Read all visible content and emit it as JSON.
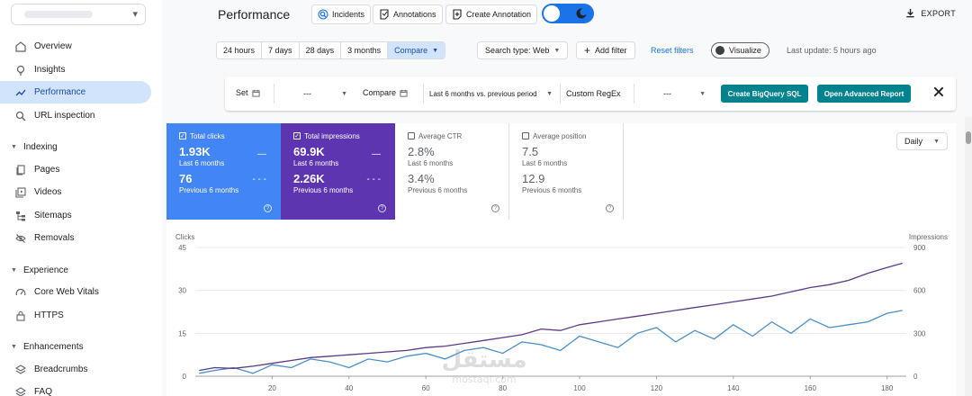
{
  "sidebar": {
    "items": [
      {
        "label": "Overview",
        "icon": "overview-icon",
        "active": false
      },
      {
        "label": "Insights",
        "icon": "insights-icon",
        "active": false
      },
      {
        "label": "Performance",
        "icon": "performance-icon",
        "active": true
      },
      {
        "label": "URL inspection",
        "icon": "search-icon",
        "active": false
      }
    ],
    "indexing": {
      "label": "Indexing",
      "items": [
        {
          "label": "Pages",
          "icon": "pages-icon"
        },
        {
          "label": "Videos",
          "icon": "videos-icon"
        },
        {
          "label": "Sitemaps",
          "icon": "sitemaps-icon"
        },
        {
          "label": "Removals",
          "icon": "removals-icon"
        }
      ]
    },
    "experience": {
      "label": "Experience",
      "items": [
        {
          "label": "Core Web Vitals",
          "icon": "gauge-icon"
        },
        {
          "label": "HTTPS",
          "icon": "lock-icon"
        }
      ]
    },
    "enhancements": {
      "label": "Enhancements",
      "items": [
        {
          "label": "Breadcrumbs",
          "icon": "layers-icon"
        },
        {
          "label": "FAQ",
          "icon": "layers-icon"
        }
      ]
    }
  },
  "header": {
    "title": "Performance",
    "incidents": "Incidents",
    "annotations": "Annotations",
    "create_annotation": "Create Annotation",
    "export": "EXPORT"
  },
  "filters": {
    "ranges": [
      "24 hours",
      "7 days",
      "28 days",
      "3 months",
      "Compare"
    ],
    "active_range": "Compare",
    "search_type": "Search type: Web",
    "add_filter": "Add filter",
    "reset": "Reset filters",
    "visualize": "Visualize",
    "last_update": "Last update: 5 hours ago"
  },
  "compare": {
    "set_label": "Set",
    "set_value": "---",
    "compare_label": "Compare",
    "compare_value": "Last 6 months vs. previous period",
    "regex_label": "Custom RegEx",
    "regex_value": "---",
    "bigquery": "Create BigQuery SQL",
    "advanced": "Open Advanced Report"
  },
  "metrics": [
    {
      "title": "Total clicks",
      "checked": true,
      "v1": "1.93K",
      "l1": "Last 6 months",
      "v2": "76",
      "l2": "Previous 6 months",
      "color": "#4285f4"
    },
    {
      "title": "Total impressions",
      "checked": true,
      "v1": "69.9K",
      "l1": "Last 6 months",
      "v2": "2.26K",
      "l2": "Previous 6 months",
      "color": "#5e35b1"
    },
    {
      "title": "Average CTR",
      "checked": false,
      "v1": "2.8%",
      "l1": "Last 6 months",
      "v2": "3.4%",
      "l2": "Previous 6 months"
    },
    {
      "title": "Average position",
      "checked": false,
      "v1": "7.5",
      "l1": "Last 6 months",
      "v2": "12.9",
      "l2": "Previous 6 months"
    }
  ],
  "granularity": "Daily",
  "chart_data": {
    "type": "line",
    "ylabel_left": "Clicks",
    "ylabel_right": "Impressions",
    "y_left_ticks": [
      0,
      15,
      30,
      45
    ],
    "y_right_ticks": [
      0,
      300,
      600,
      900
    ],
    "ylim_left": [
      0,
      45
    ],
    "ylim_right": [
      0,
      900
    ],
    "x_ticks": [
      20,
      40,
      60,
      80,
      100,
      120,
      140,
      160,
      180
    ],
    "xlim": [
      0,
      185
    ],
    "series": [
      {
        "name": "Total clicks",
        "axis": "left",
        "color": "#4a90c8",
        "x": [
          1,
          5,
          10,
          15,
          20,
          25,
          30,
          35,
          40,
          45,
          50,
          55,
          60,
          65,
          70,
          75,
          80,
          85,
          90,
          95,
          100,
          105,
          110,
          115,
          120,
          125,
          130,
          135,
          140,
          145,
          150,
          155,
          160,
          165,
          170,
          175,
          180,
          184
        ],
        "values": [
          1,
          2,
          3,
          1,
          4,
          3,
          6,
          5,
          3,
          6,
          5,
          7,
          8,
          6,
          9,
          10,
          8,
          12,
          11,
          9,
          14,
          12,
          10,
          15,
          17,
          12,
          16,
          13,
          18,
          14,
          19,
          15,
          20,
          17,
          18,
          19,
          22,
          23
        ]
      },
      {
        "name": "Total impressions",
        "axis": "right",
        "color": "#5b3a8a",
        "x": [
          1,
          5,
          10,
          15,
          20,
          25,
          30,
          35,
          40,
          45,
          50,
          55,
          60,
          65,
          70,
          75,
          80,
          85,
          90,
          95,
          100,
          105,
          110,
          115,
          120,
          125,
          130,
          135,
          140,
          145,
          150,
          155,
          160,
          165,
          170,
          175,
          180,
          184
        ],
        "values": [
          40,
          60,
          55,
          70,
          90,
          110,
          130,
          140,
          150,
          160,
          170,
          180,
          200,
          210,
          230,
          250,
          270,
          290,
          330,
          320,
          360,
          380,
          400,
          420,
          440,
          460,
          480,
          500,
          520,
          540,
          560,
          590,
          620,
          640,
          670,
          720,
          760,
          790
        ]
      }
    ]
  }
}
